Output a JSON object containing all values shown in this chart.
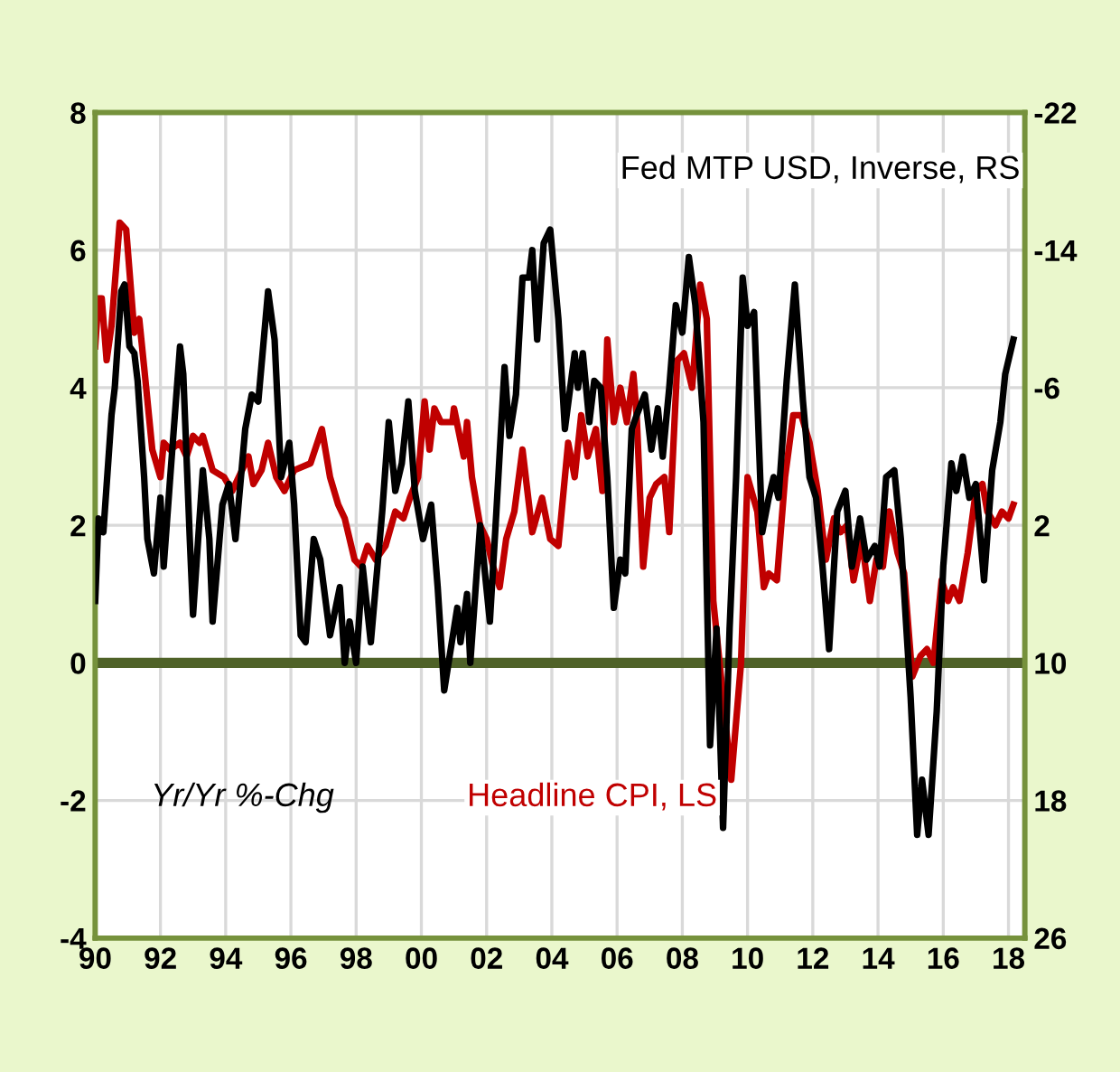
{
  "chart_data": {
    "type": "line",
    "annotations": [
      "Yr/Yr %-Chg"
    ],
    "xlim": [
      1990,
      2018.5
    ],
    "xticks": [
      {
        "value": 1990,
        "label": "90"
      },
      {
        "value": 1992,
        "label": "92"
      },
      {
        "value": 1994,
        "label": "94"
      },
      {
        "value": 1996,
        "label": "96"
      },
      {
        "value": 1998,
        "label": "98"
      },
      {
        "value": 2000,
        "label": "00"
      },
      {
        "value": 2002,
        "label": "02"
      },
      {
        "value": 2004,
        "label": "04"
      },
      {
        "value": 2006,
        "label": "06"
      },
      {
        "value": 2008,
        "label": "08"
      },
      {
        "value": 2010,
        "label": "10"
      },
      {
        "value": 2012,
        "label": "12"
      },
      {
        "value": 2014,
        "label": "14"
      },
      {
        "value": 2016,
        "label": "16"
      },
      {
        "value": 2018,
        "label": "18"
      }
    ],
    "ylim": [
      -4,
      8
    ],
    "yticks": [
      -4,
      -2,
      0,
      2,
      4,
      6,
      8
    ],
    "y2lim": [
      26,
      -22
    ],
    "y2ticks": [
      -22,
      -14,
      -6,
      2,
      10,
      18,
      26
    ],
    "grid": true,
    "legend": false,
    "marker": "none",
    "line_style": "solid",
    "ref_lines": [
      {
        "axis": "y",
        "value": 0,
        "color": "#4f6228"
      }
    ],
    "series": [
      {
        "name": "Headline CPI, LS",
        "color": "#c00000",
        "x": [
          1990.0,
          1990.1,
          1990.2,
          1990.35,
          1990.5,
          1990.75,
          1990.95,
          1991.2,
          1991.35,
          1991.5,
          1991.75,
          1992.0,
          1992.1,
          1992.3,
          1992.6,
          1992.8,
          1993.0,
          1993.2,
          1993.3,
          1993.6,
          1993.95,
          1994.2,
          1994.7,
          1994.85,
          1995.1,
          1995.3,
          1995.55,
          1995.8,
          1996.1,
          1996.6,
          1996.95,
          1997.2,
          1997.45,
          1997.65,
          1997.95,
          1998.15,
          1998.35,
          1998.6,
          1998.9,
          1999.2,
          1999.45,
          1999.65,
          1999.9,
          2000.1,
          2000.25,
          2000.4,
          2000.6,
          2000.95,
          2001.0,
          2001.3,
          2001.4,
          2001.55,
          2001.8,
          2002.0,
          2002.2,
          2002.4,
          2002.6,
          2002.85,
          2003.1,
          2003.4,
          2003.7,
          2003.95,
          2004.2,
          2004.5,
          2004.7,
          2004.9,
          2005.1,
          2005.35,
          2005.55,
          2005.7,
          2005.9,
          2006.1,
          2006.3,
          2006.5,
          2006.6,
          2006.8,
          2007.0,
          2007.2,
          2007.45,
          2007.6,
          2007.85,
          2008.05,
          2008.3,
          2008.55,
          2008.75,
          2008.95,
          2009.25,
          2009.5,
          2009.8,
          2010.0,
          2010.3,
          2010.5,
          2010.65,
          2010.9,
          2011.15,
          2011.4,
          2011.65,
          2011.9,
          2012.15,
          2012.4,
          2012.65,
          2012.85,
          2013.05,
          2013.25,
          2013.5,
          2013.75,
          2013.95,
          2014.15,
          2014.35,
          2014.6,
          2014.8,
          2015.05,
          2015.3,
          2015.5,
          2015.7,
          2015.95,
          2016.15,
          2016.3,
          2016.5,
          2016.75,
          2017.0,
          2017.2,
          2017.35,
          2017.6,
          2017.8,
          2018.0,
          2018.15
        ],
        "values": [
          4.6,
          5.3,
          5.3,
          4.4,
          4.9,
          6.4,
          6.3,
          4.8,
          5.0,
          4.3,
          3.1,
          2.7,
          3.2,
          3.1,
          3.2,
          3.0,
          3.3,
          3.2,
          3.3,
          2.8,
          2.7,
          2.5,
          3.0,
          2.6,
          2.8,
          3.2,
          2.7,
          2.5,
          2.8,
          2.9,
          3.4,
          2.7,
          2.3,
          2.1,
          1.5,
          1.4,
          1.7,
          1.5,
          1.7,
          2.2,
          2.1,
          2.4,
          2.7,
          3.8,
          3.1,
          3.7,
          3.5,
          3.5,
          3.7,
          3.0,
          3.5,
          2.7,
          2.0,
          1.8,
          1.4,
          1.1,
          1.8,
          2.2,
          3.1,
          1.9,
          2.4,
          1.8,
          1.7,
          3.2,
          2.7,
          3.6,
          3.0,
          3.4,
          2.5,
          4.7,
          3.5,
          4.0,
          3.5,
          4.2,
          3.6,
          1.4,
          2.4,
          2.6,
          2.7,
          1.9,
          4.4,
          4.5,
          4.0,
          5.5,
          5.0,
          0.9,
          -0.5,
          -1.7,
          0.0,
          2.7,
          2.2,
          1.1,
          1.3,
          1.2,
          2.7,
          3.6,
          3.6,
          3.2,
          2.5,
          1.5,
          2.1,
          1.9,
          2.0,
          1.2,
          1.8,
          0.9,
          1.5,
          1.4,
          2.2,
          1.6,
          1.3,
          -0.2,
          0.1,
          0.2,
          0.0,
          1.2,
          0.9,
          1.1,
          0.9,
          1.6,
          2.5,
          2.6,
          2.2,
          2.0,
          2.2,
          2.1,
          2.3
        ]
      },
      {
        "name": "Fed MTP USD, Inverse, RS",
        "color": "#000000",
        "axis": "y2",
        "x": [
          1990.0,
          1990.1,
          1990.25,
          1990.5,
          1990.6,
          1990.8,
          1990.9,
          1991.05,
          1991.2,
          1991.3,
          1991.5,
          1991.6,
          1991.8,
          1992.0,
          1992.1,
          1992.3,
          1992.6,
          1992.7,
          1992.9,
          1993.0,
          1993.3,
          1993.5,
          1993.6,
          1993.9,
          1994.1,
          1994.3,
          1994.6,
          1994.8,
          1995.0,
          1995.3,
          1995.5,
          1995.7,
          1995.95,
          1996.1,
          1996.3,
          1996.45,
          1996.7,
          1996.9,
          1997.2,
          1997.5,
          1997.65,
          1997.8,
          1998.0,
          1998.2,
          1998.45,
          1998.8,
          1999.0,
          1999.2,
          1999.4,
          1999.6,
          1999.8,
          2000.05,
          2000.3,
          2000.5,
          2000.7,
          2001.1,
          2001.2,
          2001.4,
          2001.5,
          2001.8,
          2002.1,
          2002.3,
          2002.55,
          2002.7,
          2002.9,
          2003.1,
          2003.3,
          2003.4,
          2003.55,
          2003.75,
          2003.95,
          2004.2,
          2004.4,
          2004.7,
          2004.8,
          2004.95,
          2005.15,
          2005.3,
          2005.5,
          2005.7,
          2005.9,
          2006.1,
          2006.25,
          2006.45,
          2006.6,
          2006.85,
          2007.05,
          2007.25,
          2007.4,
          2007.6,
          2007.8,
          2008.0,
          2008.2,
          2008.4,
          2008.65,
          2008.85,
          2009.05,
          2009.25,
          2009.45,
          2009.65,
          2009.85,
          2010.0,
          2010.2,
          2010.45,
          2010.65,
          2010.8,
          2010.95,
          2011.2,
          2011.45,
          2011.7,
          2011.9,
          2012.1,
          2012.3,
          2012.5,
          2012.75,
          2013.0,
          2013.2,
          2013.45,
          2013.65,
          2013.9,
          2014.05,
          2014.25,
          2014.5,
          2014.7,
          2015.0,
          2015.2,
          2015.35,
          2015.55,
          2015.8,
          2016.0,
          2016.25,
          2016.4,
          2016.6,
          2016.8,
          2017.0,
          2017.25,
          2017.5,
          2017.75,
          2017.9,
          2018.15
        ],
        "values": [
          6.4,
          1.6,
          2.4,
          -4.4,
          -6,
          -11.6,
          -12,
          -8.4,
          -8,
          -6.4,
          -0.8,
          2.8,
          4.8,
          0.4,
          4.4,
          -0.8,
          -8.4,
          -6.8,
          2.8,
          7.2,
          -1.2,
          2.8,
          7.6,
          0.8,
          -0.4,
          2.8,
          -3.6,
          -5.6,
          -5.2,
          -11.6,
          -8.8,
          -0.8,
          -2.8,
          0.8,
          8.4,
          8.8,
          2.8,
          4,
          8.4,
          5.6,
          10,
          7.6,
          10,
          4.4,
          8.8,
          1.2,
          -4,
          0,
          -1.6,
          -5.2,
          0,
          2.8,
          0.8,
          5.6,
          11.6,
          6.8,
          8.8,
          6,
          10,
          2,
          7.6,
          1.2,
          -7.2,
          -3.2,
          -5.6,
          -12.4,
          -12.4,
          -14,
          -8.8,
          -14.4,
          -15.2,
          -10,
          -3.6,
          -8,
          -6,
          -8,
          -4,
          -6.4,
          -6,
          -0.8,
          6.8,
          4,
          4.8,
          -3.6,
          -4.4,
          -5.6,
          -2.4,
          -4.8,
          -2,
          -6,
          -10.8,
          -9.2,
          -13.6,
          -10.8,
          -4,
          14.8,
          8,
          19.6,
          8,
          -0.8,
          -12.4,
          -9.6,
          -10.4,
          2.4,
          0.4,
          -0.8,
          0.4,
          -6.4,
          -12,
          -5.2,
          -0.8,
          0.4,
          4.4,
          9.2,
          1.2,
          0,
          4.4,
          1.6,
          4,
          3.2,
          4.4,
          -0.8,
          -1.2,
          2.8,
          12,
          20,
          16.8,
          20,
          12.8,
          4.4,
          -1.6,
          0,
          -2,
          0.4,
          -0.4,
          5.2,
          -1.2,
          -4,
          -6.8,
          -8.8
        ]
      }
    ]
  }
}
